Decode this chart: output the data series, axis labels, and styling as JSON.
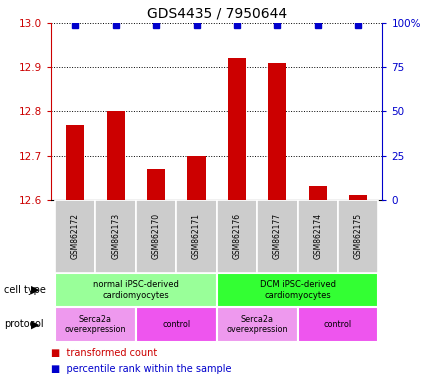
{
  "title": "GDS4435 / 7950644",
  "samples": [
    "GSM862172",
    "GSM862173",
    "GSM862170",
    "GSM862171",
    "GSM862176",
    "GSM862177",
    "GSM862174",
    "GSM862175"
  ],
  "bar_values": [
    12.77,
    12.8,
    12.67,
    12.7,
    12.92,
    12.91,
    12.63,
    12.61
  ],
  "percentile_values": [
    99,
    99,
    99,
    99,
    99,
    99,
    99,
    99
  ],
  "ylim_left": [
    12.6,
    13.0
  ],
  "ylim_right": [
    0,
    100
  ],
  "yticks_left": [
    12.6,
    12.7,
    12.8,
    12.9,
    13.0
  ],
  "yticks_right": [
    0,
    25,
    50,
    75,
    100
  ],
  "bar_color": "#cc0000",
  "dot_color": "#0000cc",
  "cell_type_groups": [
    {
      "label": "normal iPSC-derived\ncardiomyocytes",
      "start": 0,
      "end": 3,
      "color": "#99ff99"
    },
    {
      "label": "DCM iPSC-derived\ncardiomyocytes",
      "start": 4,
      "end": 7,
      "color": "#33ff33"
    }
  ],
  "protocol_groups": [
    {
      "label": "Serca2a\noverexpression",
      "start": 0,
      "end": 1,
      "color": "#ee99ee"
    },
    {
      "label": "control",
      "start": 2,
      "end": 3,
      "color": "#ee55ee"
    },
    {
      "label": "Serca2a\noverexpression",
      "start": 4,
      "end": 5,
      "color": "#ee99ee"
    },
    {
      "label": "control",
      "start": 6,
      "end": 7,
      "color": "#ee55ee"
    }
  ],
  "legend_red_label": "transformed count",
  "legend_blue_label": "percentile rank within the sample",
  "cell_type_label": "cell type",
  "protocol_label": "protocol",
  "title_fontsize": 10,
  "tick_fontsize": 7.5,
  "axis_label_color_left": "#cc0000",
  "axis_label_color_right": "#0000cc",
  "sample_box_color": "#cccccc",
  "bar_width": 0.45
}
